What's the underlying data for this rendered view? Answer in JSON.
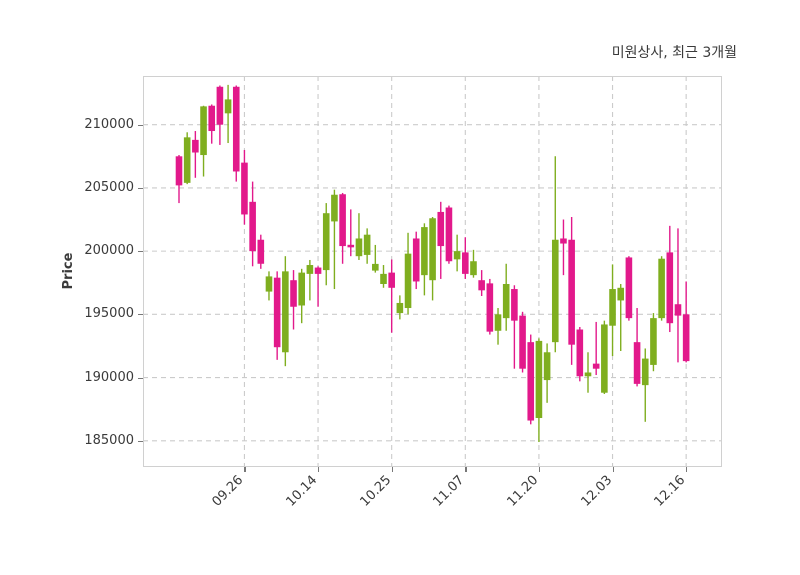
{
  "title": "미원상사, 최근 3개월",
  "axes": {
    "y_label": "Price",
    "y_ticks": [
      "210000",
      "205000",
      "200000",
      "195000",
      "190000",
      "185000"
    ],
    "x_ticks": [
      "09.26",
      "10.14",
      "10.25",
      "11.07",
      "11.20",
      "12.03",
      "12.16"
    ]
  },
  "colors": {
    "up": "#7fae1f",
    "down": "#e2198b",
    "grid": "#cbcbcb",
    "spine": "#d0d0d0",
    "text": "#3a3a3a"
  },
  "chart_data": {
    "type": "candlestick",
    "title": "미원상사, 최근 3개월",
    "ylabel": "Price",
    "ylim": [
      182700,
      213900
    ],
    "y_ticks": [
      185000,
      190000,
      195000,
      200000,
      205000,
      210000
    ],
    "x_tick_indices": [
      8,
      17,
      26,
      35,
      44,
      53,
      62
    ],
    "x_tick_labels": [
      "09.26",
      "10.14",
      "10.25",
      "11.07",
      "11.20",
      "12.03",
      "12.16"
    ],
    "grid": "dashed",
    "legend": "none",
    "candles": [
      {
        "date": "09.11",
        "open": 207500,
        "high": 207600,
        "low": 203800,
        "close": 205200
      },
      {
        "date": "09.12",
        "open": 205400,
        "high": 209400,
        "low": 205300,
        "close": 209000
      },
      {
        "date": "09.13",
        "open": 208800,
        "high": 209500,
        "low": 205800,
        "close": 207800
      },
      {
        "date": "09.19",
        "open": 207600,
        "high": 211500,
        "low": 205900,
        "close": 211450
      },
      {
        "date": "09.20",
        "open": 211500,
        "high": 211600,
        "low": 208500,
        "close": 209500
      },
      {
        "date": "09.23",
        "open": 213000,
        "high": 213100,
        "low": 208400,
        "close": 210000
      },
      {
        "date": "09.24",
        "open": 210900,
        "high": 213150,
        "low": 208550,
        "close": 212000
      },
      {
        "date": "09.25",
        "open": 213000,
        "high": 213100,
        "low": 205500,
        "close": 206300
      },
      {
        "date": "09.26",
        "open": 207000,
        "high": 208000,
        "low": 202100,
        "close": 202900
      },
      {
        "date": "09.27",
        "open": 203900,
        "high": 205500,
        "low": 198800,
        "close": 200000
      },
      {
        "date": "09.30",
        "open": 200900,
        "high": 201300,
        "low": 198600,
        "close": 199000
      },
      {
        "date": "10.02",
        "open": 196800,
        "high": 198400,
        "low": 196100,
        "close": 198000
      },
      {
        "date": "10.04",
        "open": 197900,
        "high": 198400,
        "low": 191400,
        "close": 192400
      },
      {
        "date": "10.07",
        "open": 192000,
        "high": 199600,
        "low": 190900,
        "close": 198400
      },
      {
        "date": "10.08",
        "open": 197700,
        "high": 198500,
        "low": 193800,
        "close": 195600
      },
      {
        "date": "10.10",
        "open": 195700,
        "high": 198600,
        "low": 194300,
        "close": 198300
      },
      {
        "date": "10.11",
        "open": 198200,
        "high": 199300,
        "low": 196100,
        "close": 198900
      },
      {
        "date": "10.14",
        "open": 198700,
        "high": 198800,
        "low": 195600,
        "close": 198200
      },
      {
        "date": "10.15",
        "open": 198500,
        "high": 203800,
        "low": 197300,
        "close": 203000
      },
      {
        "date": "10.16",
        "open": 202350,
        "high": 204860,
        "low": 197000,
        "close": 204460
      },
      {
        "date": "10.17",
        "open": 204500,
        "high": 204600,
        "low": 199000,
        "close": 200400
      },
      {
        "date": "10.18",
        "open": 200500,
        "high": 203300,
        "low": 199600,
        "close": 200300
      },
      {
        "date": "10.21",
        "open": 199600,
        "high": 203000,
        "low": 199300,
        "close": 201000
      },
      {
        "date": "10.22",
        "open": 199700,
        "high": 201800,
        "low": 199000,
        "close": 201300
      },
      {
        "date": "10.23",
        "open": 198460,
        "high": 200490,
        "low": 198300,
        "close": 198990
      },
      {
        "date": "10.24",
        "open": 197400,
        "high": 198900,
        "low": 197100,
        "close": 198200
      },
      {
        "date": "10.25",
        "open": 198300,
        "high": 199340,
        "low": 193550,
        "close": 197100
      },
      {
        "date": "10.28",
        "open": 195100,
        "high": 196500,
        "low": 194600,
        "close": 195900
      },
      {
        "date": "10.29",
        "open": 195500,
        "high": 201450,
        "low": 195000,
        "close": 199800
      },
      {
        "date": "10.30",
        "open": 201000,
        "high": 201540,
        "low": 197000,
        "close": 197600
      },
      {
        "date": "10.31",
        "open": 198100,
        "high": 202200,
        "low": 196500,
        "close": 201900
      },
      {
        "date": "11.01",
        "open": 197700,
        "high": 202700,
        "low": 196100,
        "close": 202600
      },
      {
        "date": "11.04",
        "open": 203100,
        "high": 203900,
        "low": 197800,
        "close": 200400
      },
      {
        "date": "11.05",
        "open": 203450,
        "high": 203600,
        "low": 199000,
        "close": 199200
      },
      {
        "date": "11.06",
        "open": 199350,
        "high": 201300,
        "low": 198400,
        "close": 200000
      },
      {
        "date": "11.07",
        "open": 199900,
        "high": 201100,
        "low": 197800,
        "close": 198200
      },
      {
        "date": "11.08",
        "open": 198100,
        "high": 200100,
        "low": 197900,
        "close": 199200
      },
      {
        "date": "11.11",
        "open": 197700,
        "high": 198500,
        "low": 196450,
        "close": 196900
      },
      {
        "date": "11.12",
        "open": 197450,
        "high": 197800,
        "low": 193400,
        "close": 193630
      },
      {
        "date": "11.13",
        "open": 193700,
        "high": 195500,
        "low": 192600,
        "close": 195000
      },
      {
        "date": "11.14",
        "open": 194700,
        "high": 199000,
        "low": 193700,
        "close": 197400
      },
      {
        "date": "11.15",
        "open": 197000,
        "high": 197300,
        "low": 190700,
        "close": 194500
      },
      {
        "date": "11.18",
        "open": 194900,
        "high": 195200,
        "low": 190400,
        "close": 190700
      },
      {
        "date": "11.19",
        "open": 192800,
        "high": 193400,
        "low": 186300,
        "close": 186600
      },
      {
        "date": "11.20",
        "open": 186800,
        "high": 193100,
        "low": 184900,
        "close": 192900
      },
      {
        "date": "11.21",
        "open": 189800,
        "high": 192700,
        "low": 188000,
        "close": 192000
      },
      {
        "date": "11.22",
        "open": 192800,
        "high": 207500,
        "low": 192000,
        "close": 200900
      },
      {
        "date": "11.25",
        "open": 201000,
        "high": 202500,
        "low": 198100,
        "close": 200600
      },
      {
        "date": "11.26",
        "open": 200900,
        "high": 202700,
        "low": 191000,
        "close": 192600
      },
      {
        "date": "11.27",
        "open": 193800,
        "high": 194000,
        "low": 189700,
        "close": 190100
      },
      {
        "date": "11.28",
        "open": 190100,
        "high": 192000,
        "low": 188800,
        "close": 190400
      },
      {
        "date": "11.29",
        "open": 191100,
        "high": 194400,
        "low": 190200,
        "close": 190700
      },
      {
        "date": "12.02",
        "open": 188800,
        "high": 194500,
        "low": 188700,
        "close": 194200
      },
      {
        "date": "12.03",
        "open": 194100,
        "high": 198950,
        "low": 191700,
        "close": 197000
      },
      {
        "date": "12.04",
        "open": 196100,
        "high": 197400,
        "low": 192100,
        "close": 197100
      },
      {
        "date": "12.05",
        "open": 199500,
        "high": 199600,
        "low": 194500,
        "close": 194700
      },
      {
        "date": "12.06",
        "open": 192800,
        "high": 195500,
        "low": 189300,
        "close": 189500
      },
      {
        "date": "12.09",
        "open": 189400,
        "high": 192300,
        "low": 186500,
        "close": 191500
      },
      {
        "date": "12.10",
        "open": 191000,
        "high": 195100,
        "low": 190500,
        "close": 194700
      },
      {
        "date": "12.11",
        "open": 194700,
        "high": 199600,
        "low": 194500,
        "close": 199400
      },
      {
        "date": "12.12",
        "open": 199900,
        "high": 202000,
        "low": 193600,
        "close": 194300
      },
      {
        "date": "12.13",
        "open": 195800,
        "high": 201800,
        "low": 191200,
        "close": 194900
      },
      {
        "date": "12.16",
        "open": 195000,
        "high": 197600,
        "low": 191200,
        "close": 191300
      }
    ]
  }
}
